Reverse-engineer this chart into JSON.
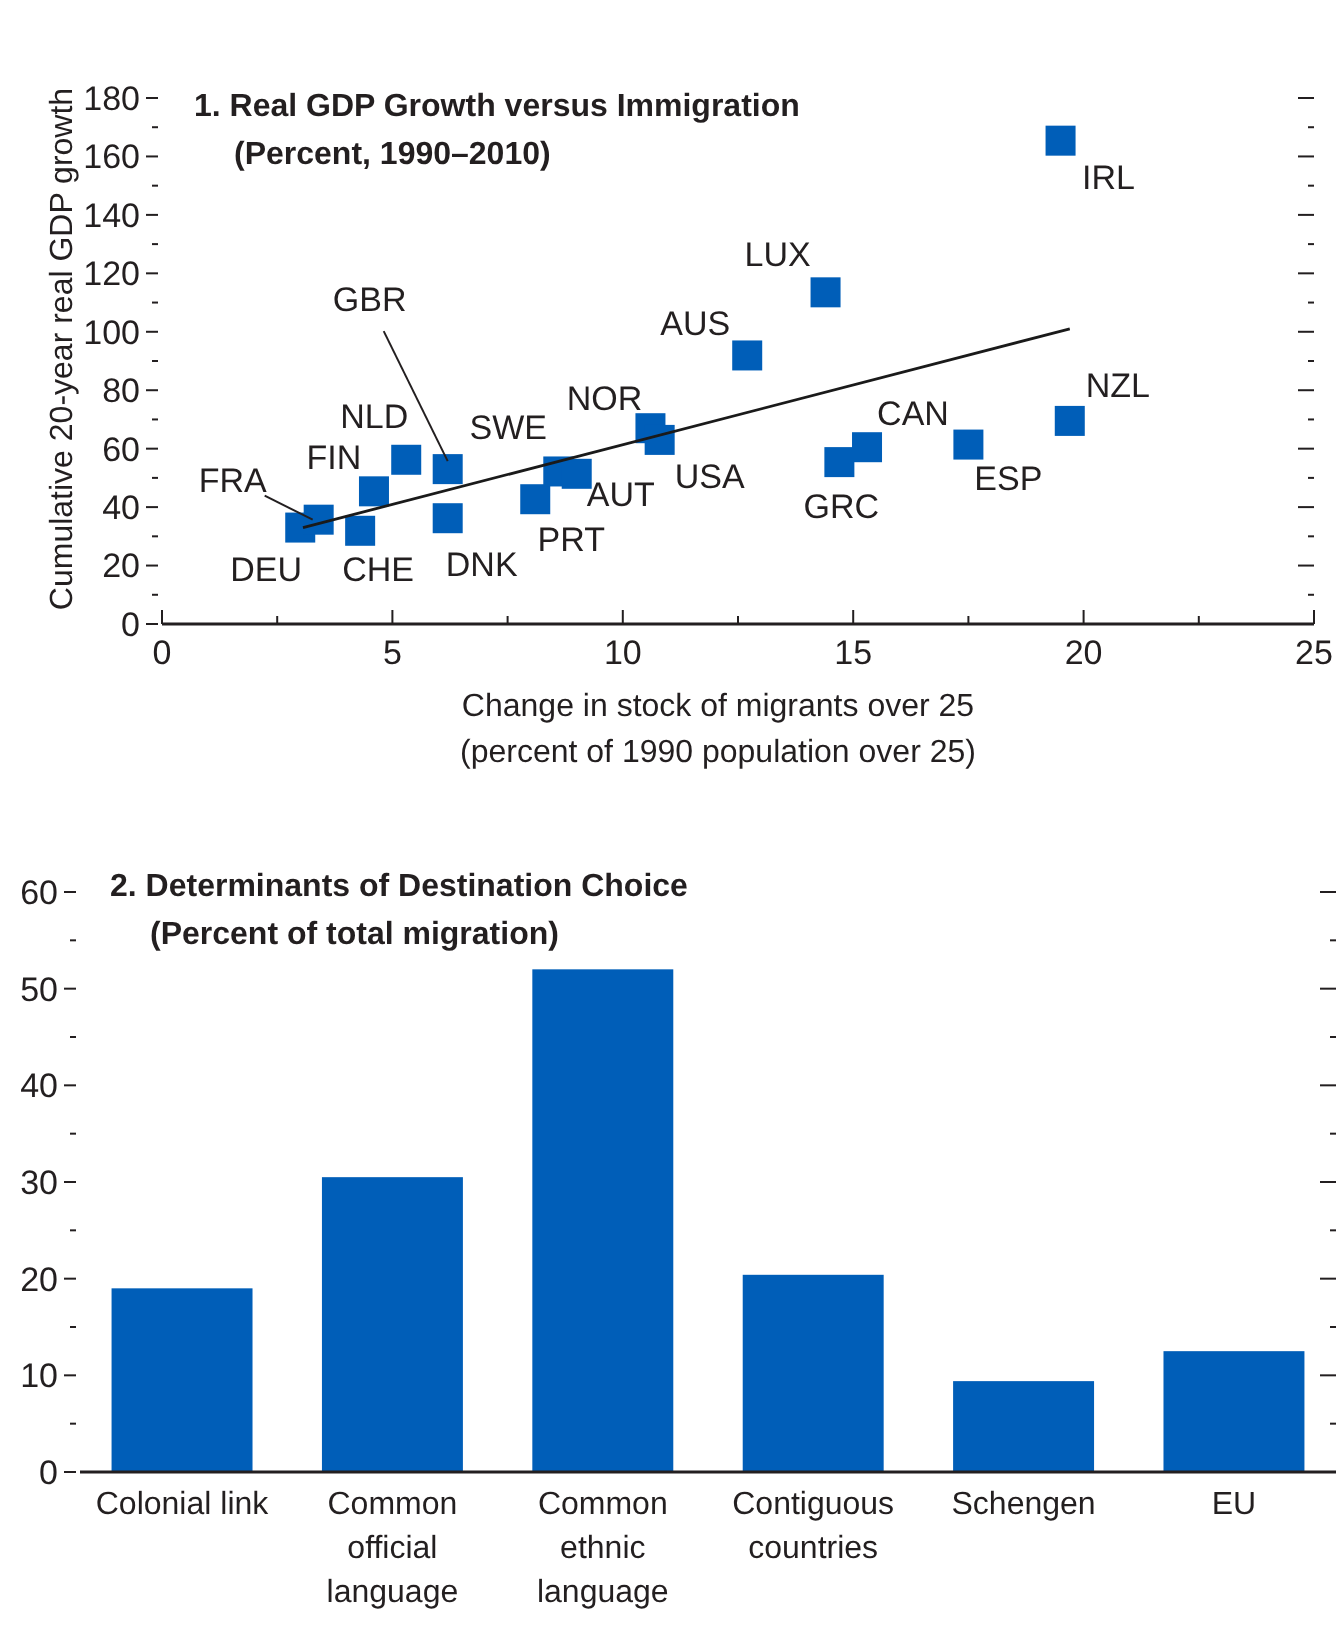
{
  "chart_data": [
    {
      "type": "scatter",
      "title": "1. Real GDP Growth versus Immigration",
      "subtitle": "(Percent, 1990–2010)",
      "xlabel": "Change in stock of migrants over 25\n(percent of 1990 population over 25)",
      "ylabel": "Cumulative 20-year real GDP growth",
      "xlim": [
        0,
        25
      ],
      "xticks": [
        0,
        {
          "value": 2.5,
          "label": null
        },
        5,
        {
          "value": 7.5,
          "label": null
        },
        10,
        {
          "value": 12.5,
          "label": null
        },
        15,
        {
          "value": 17.5,
          "label": null
        },
        20,
        {
          "value": 22.5,
          "label": null
        },
        25
      ],
      "ylim": [
        0,
        180
      ],
      "yticks": [
        0,
        {
          "value": 10,
          "label": null
        },
        20,
        {
          "value": 30,
          "label": null
        },
        40,
        {
          "value": 50,
          "label": null
        },
        60,
        {
          "value": 70,
          "label": null
        },
        80,
        {
          "value": 90,
          "label": null
        },
        100,
        {
          "value": 110,
          "label": null
        },
        120,
        {
          "value": 130,
          "label": null
        },
        140,
        {
          "value": 150,
          "label": null
        },
        160,
        {
          "value": 170,
          "label": null
        },
        180
      ],
      "series": [
        {
          "type": "scatter",
          "marker": "square",
          "color": "#005eb8",
          "x": [
            3.0,
            3.4,
            4.3,
            4.6,
            5.3,
            6.2,
            6.2,
            8.1,
            8.6,
            9.0,
            10.6,
            10.8,
            12.7,
            14.4,
            14.7,
            15.3,
            17.5,
            19.7,
            19.5
          ],
          "values": [
            33,
            35.7,
            31.9,
            45.4,
            56.2,
            53,
            36.2,
            42.7,
            52.2,
            51.4,
            67,
            63,
            91.9,
            113.5,
            55.4,
            60.5,
            61.4,
            69.5,
            165.4
          ]
        },
        {
          "type": "line",
          "color": "#1a1a1a",
          "x": [
            3.06,
            19.7
          ],
          "values": [
            33,
            101
          ]
        }
      ],
      "annotations": [
        {
          "text": "DEU",
          "x": 3.0,
          "y": 33
        },
        {
          "text": "FRA",
          "x": 3.4,
          "y": 35.7
        },
        {
          "text": "CHE",
          "x": 4.3,
          "y": 31.9
        },
        {
          "text": "FIN",
          "x": 4.6,
          "y": 45.4
        },
        {
          "text": "NLD",
          "x": 5.3,
          "y": 56.2
        },
        {
          "text": "GBR",
          "x": 6.2,
          "y": 53
        },
        {
          "text": "DNK",
          "x": 6.2,
          "y": 36.2
        },
        {
          "text": "PRT",
          "x": 8.1,
          "y": 42.7
        },
        {
          "text": "SWE",
          "x": 8.6,
          "y": 52.2
        },
        {
          "text": "AUT",
          "x": 9.0,
          "y": 51.4
        },
        {
          "text": "NOR",
          "x": 10.6,
          "y": 67
        },
        {
          "text": "USA",
          "x": 10.8,
          "y": 63
        },
        {
          "text": "AUS",
          "x": 12.7,
          "y": 91.9
        },
        {
          "text": "LUX",
          "x": 14.4,
          "y": 113.5
        },
        {
          "text": "GRC",
          "x": 14.7,
          "y": 55.4
        },
        {
          "text": "CAN",
          "x": 15.3,
          "y": 60.5
        },
        {
          "text": "ESP",
          "x": 17.5,
          "y": 61.4
        },
        {
          "text": "NZL",
          "x": 19.7,
          "y": 69.5
        },
        {
          "text": "IRL",
          "x": 19.5,
          "y": 165.4
        }
      ]
    },
    {
      "type": "bar",
      "title": "2. Determinants of Destination Choice",
      "subtitle": "(Percent of total migration)",
      "categories": [
        "Colonial link",
        "Common official language",
        "Common ethnic language",
        "Contiguous countries",
        "Schengen",
        "EU"
      ],
      "values": [
        19.0,
        30.5,
        52.0,
        20.4,
        9.4,
        12.5
      ],
      "color": "#005eb8",
      "ylim": [
        0,
        60
      ],
      "yticks": [
        0,
        {
          "value": 5,
          "label": null
        },
        10,
        {
          "value": 15,
          "label": null
        },
        20,
        {
          "value": 25,
          "label": null
        },
        30,
        {
          "value": 35,
          "label": null
        },
        40,
        {
          "value": 45,
          "label": null
        },
        50,
        {
          "value": 55,
          "label": null
        },
        60
      ]
    }
  ]
}
